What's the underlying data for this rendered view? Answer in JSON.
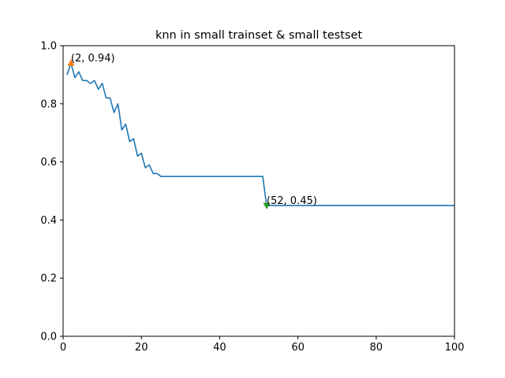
{
  "colors": {
    "line": "#1f77b4",
    "max_marker": "#ff7f0e",
    "min_marker": "#2ca02c"
  },
  "chart_data": {
    "type": "line",
    "title": "knn in small trainset & small testset",
    "xlabel": "",
    "ylabel": "",
    "xlim": [
      0,
      100
    ],
    "ylim": [
      0.0,
      1.0
    ],
    "x_ticks": [
      "0",
      "20",
      "40",
      "60",
      "80",
      "100"
    ],
    "y_ticks": [
      "0.0",
      "0.2",
      "0.4",
      "0.6",
      "0.8",
      "1.0"
    ],
    "grid": false,
    "series": [
      {
        "x": [
          1,
          2,
          3,
          4,
          5,
          6,
          7,
          8,
          9,
          10,
          11,
          12,
          13,
          14,
          15,
          16,
          17,
          18,
          19,
          20,
          21,
          22,
          23,
          24,
          25,
          26,
          27,
          28,
          29,
          30,
          31,
          32,
          33,
          34,
          35,
          36,
          37,
          38,
          39,
          40,
          41,
          42,
          43,
          44,
          45,
          46,
          47,
          48,
          49,
          50,
          51,
          52,
          53,
          54,
          55,
          56,
          57,
          58,
          59,
          60,
          61,
          62,
          63,
          64,
          65,
          66,
          67,
          68,
          69,
          70,
          71,
          72,
          73,
          74,
          75,
          76,
          77,
          78,
          79,
          80,
          81,
          82,
          83,
          84,
          85,
          86,
          87,
          88,
          89,
          90,
          91,
          92,
          93,
          94,
          95,
          96,
          97,
          98,
          99,
          100
        ],
        "y": [
          0.9,
          0.94,
          0.89,
          0.91,
          0.88,
          0.88,
          0.87,
          0.88,
          0.85,
          0.87,
          0.82,
          0.82,
          0.77,
          0.8,
          0.71,
          0.73,
          0.67,
          0.68,
          0.62,
          0.63,
          0.58,
          0.59,
          0.56,
          0.56,
          0.55,
          0.55,
          0.55,
          0.55,
          0.55,
          0.55,
          0.55,
          0.55,
          0.55,
          0.55,
          0.55,
          0.55,
          0.55,
          0.55,
          0.55,
          0.55,
          0.55,
          0.55,
          0.55,
          0.55,
          0.55,
          0.55,
          0.55,
          0.55,
          0.55,
          0.55,
          0.55,
          0.45,
          0.45,
          0.45,
          0.45,
          0.45,
          0.45,
          0.45,
          0.45,
          0.45,
          0.45,
          0.45,
          0.45,
          0.45,
          0.45,
          0.45,
          0.45,
          0.45,
          0.45,
          0.45,
          0.45,
          0.45,
          0.45,
          0.45,
          0.45,
          0.45,
          0.45,
          0.45,
          0.45,
          0.45,
          0.45,
          0.45,
          0.45,
          0.45,
          0.45,
          0.45,
          0.45,
          0.45,
          0.45,
          0.45,
          0.45,
          0.45,
          0.45,
          0.45,
          0.45,
          0.45,
          0.45,
          0.45,
          0.45,
          0.45
        ]
      }
    ],
    "annotations": [
      {
        "x": 2,
        "y": 0.94,
        "text": "(2, 0.94)",
        "marker": "triangle-up"
      },
      {
        "x": 52,
        "y": 0.45,
        "text": "(52, 0.45)",
        "marker": "triangle-down"
      }
    ]
  }
}
